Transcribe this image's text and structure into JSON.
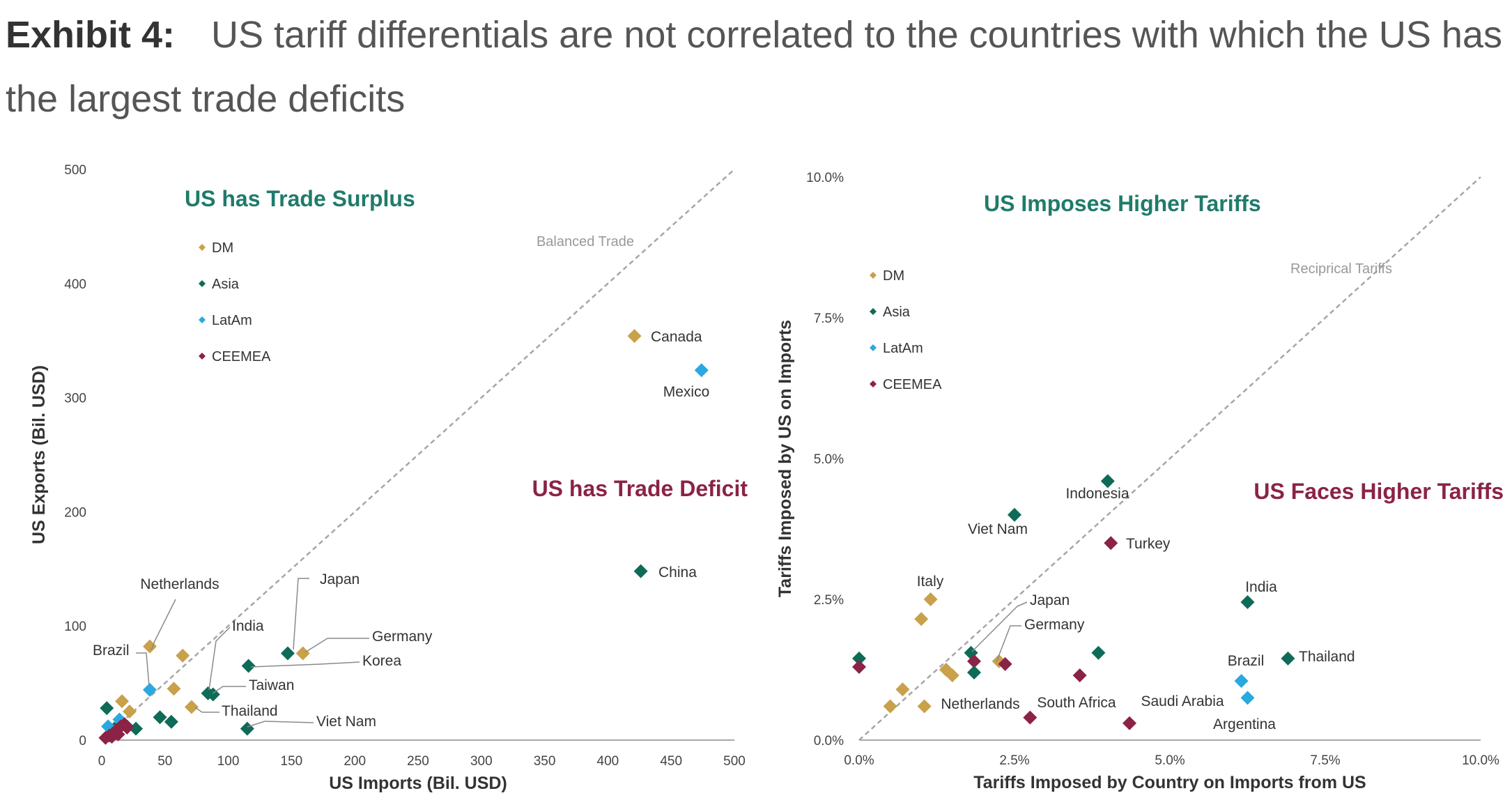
{
  "exhibit_label": "Exhibit 4:",
  "title": "US tariff differentials are not correlated to the countries with which the US has the largest trade deficits",
  "colors": {
    "DM": "#c9a14a",
    "Asia": "#0e6b57",
    "LatAm": "#29a9e0",
    "CEEMEA": "#8b2346",
    "green_text": "#1f7b6a",
    "red_text": "#8b2346"
  },
  "chart_data": [
    {
      "type": "scatter",
      "title": "",
      "xlabel": "US Imports (Bil. USD)",
      "ylabel": "US Exports (Bil. USD)",
      "xlim": [
        0,
        500
      ],
      "ylim": [
        0,
        500
      ],
      "xticks": [
        "0",
        "50",
        "100",
        "150",
        "200",
        "250",
        "300",
        "350",
        "400",
        "450",
        "500"
      ],
      "yticks": [
        "0",
        "100",
        "200",
        "300",
        "400",
        "500"
      ],
      "legend": [
        "DM",
        "Asia",
        "LatAm",
        "CEEMEA"
      ],
      "reference_line": "Balanced Trade",
      "quadrant_labels": {
        "upper": "US has Trade Surplus",
        "lower": "US has Trade Deficit"
      },
      "labels": {
        "Canada": "Canada",
        "Mexico": "Mexico",
        "China": "China",
        "Japan": "Japan",
        "Netherlands": "Netherlands",
        "India": "India",
        "Germany": "Germany",
        "Brazil": "Brazil",
        "Korea": "Korea",
        "Taiwan": "Taiwan",
        "Thailand": "Thailand",
        "VietNam": "Viet Nam"
      },
      "points": [
        {
          "group": "DM",
          "x": 421,
          "y": 354,
          "label": "Canada"
        },
        {
          "group": "LatAm",
          "x": 474,
          "y": 324,
          "label": "Mexico"
        },
        {
          "group": "Asia",
          "x": 426,
          "y": 148,
          "label": "China"
        },
        {
          "group": "Asia",
          "x": 147,
          "y": 76,
          "label": "Japan"
        },
        {
          "group": "DM",
          "x": 159,
          "y": 76,
          "label": "Germany"
        },
        {
          "group": "Asia",
          "x": 116,
          "y": 65,
          "label": "Korea"
        },
        {
          "group": "Asia",
          "x": 88,
          "y": 40,
          "label": "Taiwan"
        },
        {
          "group": "Asia",
          "x": 84,
          "y": 41,
          "label": "India"
        },
        {
          "group": "Asia",
          "x": 115,
          "y": 10,
          "label": "Viet Nam"
        },
        {
          "group": "DM",
          "x": 71,
          "y": 29,
          "label": "Thailand"
        },
        {
          "group": "DM",
          "x": 38,
          "y": 82,
          "label": "Netherlands"
        },
        {
          "group": "LatAm",
          "x": 38,
          "y": 44,
          "label": "Brazil"
        },
        {
          "group": "DM",
          "x": 64,
          "y": 74
        },
        {
          "group": "DM",
          "x": 57,
          "y": 45
        },
        {
          "group": "DM",
          "x": 16,
          "y": 34
        },
        {
          "group": "DM",
          "x": 22,
          "y": 25
        },
        {
          "group": "Asia",
          "x": 4,
          "y": 28
        },
        {
          "group": "Asia",
          "x": 46,
          "y": 20
        },
        {
          "group": "Asia",
          "x": 55,
          "y": 16
        },
        {
          "group": "Asia",
          "x": 27,
          "y": 10
        },
        {
          "group": "Asia",
          "x": 10,
          "y": 10
        },
        {
          "group": "Asia",
          "x": 20,
          "y": 12
        },
        {
          "group": "LatAm",
          "x": 5,
          "y": 12
        },
        {
          "group": "LatAm",
          "x": 14,
          "y": 18
        },
        {
          "group": "LatAm",
          "x": 10,
          "y": 7
        },
        {
          "group": "CEEMEA",
          "x": 3,
          "y": 2
        },
        {
          "group": "CEEMEA",
          "x": 6,
          "y": 4
        },
        {
          "group": "CEEMEA",
          "x": 9,
          "y": 6
        },
        {
          "group": "CEEMEA",
          "x": 12,
          "y": 9
        },
        {
          "group": "CEEMEA",
          "x": 15,
          "y": 12
        },
        {
          "group": "CEEMEA",
          "x": 18,
          "y": 14
        },
        {
          "group": "CEEMEA",
          "x": 20,
          "y": 11
        },
        {
          "group": "CEEMEA",
          "x": 8,
          "y": 3
        },
        {
          "group": "CEEMEA",
          "x": 13,
          "y": 5
        }
      ]
    },
    {
      "type": "scatter",
      "title": "",
      "xlabel": "Tariffs Imposed by Country on Imports from US",
      "ylabel": "Tariffs Imposed by US on Imports",
      "xlim": [
        0,
        10
      ],
      "ylim": [
        0,
        10
      ],
      "xticks": [
        "0.0%",
        "2.5%",
        "5.0%",
        "7.5%",
        "10.0%"
      ],
      "yticks": [
        "0.0%",
        "2.5%",
        "5.0%",
        "7.5%",
        "10.0%"
      ],
      "legend": [
        "DM",
        "Asia",
        "LatAm",
        "CEEMEA"
      ],
      "reference_line": "Reciprical Tariffs",
      "quadrant_labels": {
        "upper": "US Imposes Higher Tariffs",
        "lower": "US Faces Higher Tariffs"
      },
      "labels": {
        "Indonesia": "Indonesia",
        "VietNam": "Viet Nam",
        "Turkey": "Turkey",
        "Italy": "Italy",
        "Japan": "Japan",
        "Germany": "Germany",
        "India": "India",
        "Thailand": "Thailand",
        "Brazil": "Brazil",
        "Netherlands": "Netherlands",
        "SouthAfrica": "South Africa",
        "SaudiArabia": "Saudi Arabia",
        "Argentina": "Argentina"
      },
      "points": [
        {
          "group": "Asia",
          "x": 4.0,
          "y": 4.6,
          "label": "Indonesia"
        },
        {
          "group": "Asia",
          "x": 2.5,
          "y": 4.0,
          "label": "Viet Nam"
        },
        {
          "group": "CEEMEA",
          "x": 4.05,
          "y": 3.5,
          "label": "Turkey"
        },
        {
          "group": "DM",
          "x": 1.15,
          "y": 2.5,
          "label": "Italy"
        },
        {
          "group": "DM",
          "x": 1.0,
          "y": 2.15
        },
        {
          "group": "Asia",
          "x": 6.25,
          "y": 2.45,
          "label": "India"
        },
        {
          "group": "Asia",
          "x": 6.9,
          "y": 1.45,
          "label": "Thailand"
        },
        {
          "group": "LatAm",
          "x": 6.15,
          "y": 1.05,
          "label": "Brazil"
        },
        {
          "group": "LatAm",
          "x": 6.25,
          "y": 0.75,
          "label": "Argentina"
        },
        {
          "group": "Asia",
          "x": 1.8,
          "y": 1.55,
          "label": "Japan"
        },
        {
          "group": "CEEMEA",
          "x": 1.85,
          "y": 1.4
        },
        {
          "group": "Asia",
          "x": 1.85,
          "y": 1.2
        },
        {
          "group": "DM",
          "x": 2.25,
          "y": 1.4,
          "label": "Germany"
        },
        {
          "group": "CEEMEA",
          "x": 2.35,
          "y": 1.35
        },
        {
          "group": "Asia",
          "x": 3.85,
          "y": 1.55
        },
        {
          "group": "CEEMEA",
          "x": 3.55,
          "y": 1.15
        },
        {
          "group": "Asia",
          "x": 0.0,
          "y": 1.45
        },
        {
          "group": "CEEMEA",
          "x": 0.0,
          "y": 1.3
        },
        {
          "group": "DM",
          "x": 1.4,
          "y": 1.25
        },
        {
          "group": "DM",
          "x": 1.5,
          "y": 1.15
        },
        {
          "group": "DM",
          "x": 0.7,
          "y": 0.9
        },
        {
          "group": "DM",
          "x": 0.5,
          "y": 0.6
        },
        {
          "group": "DM",
          "x": 1.05,
          "y": 0.6,
          "label": "Netherlands"
        },
        {
          "group": "CEEMEA",
          "x": 2.75,
          "y": 0.4,
          "label": "South Africa"
        },
        {
          "group": "CEEMEA",
          "x": 4.35,
          "y": 0.3,
          "label": "Saudi Arabia"
        }
      ]
    }
  ]
}
